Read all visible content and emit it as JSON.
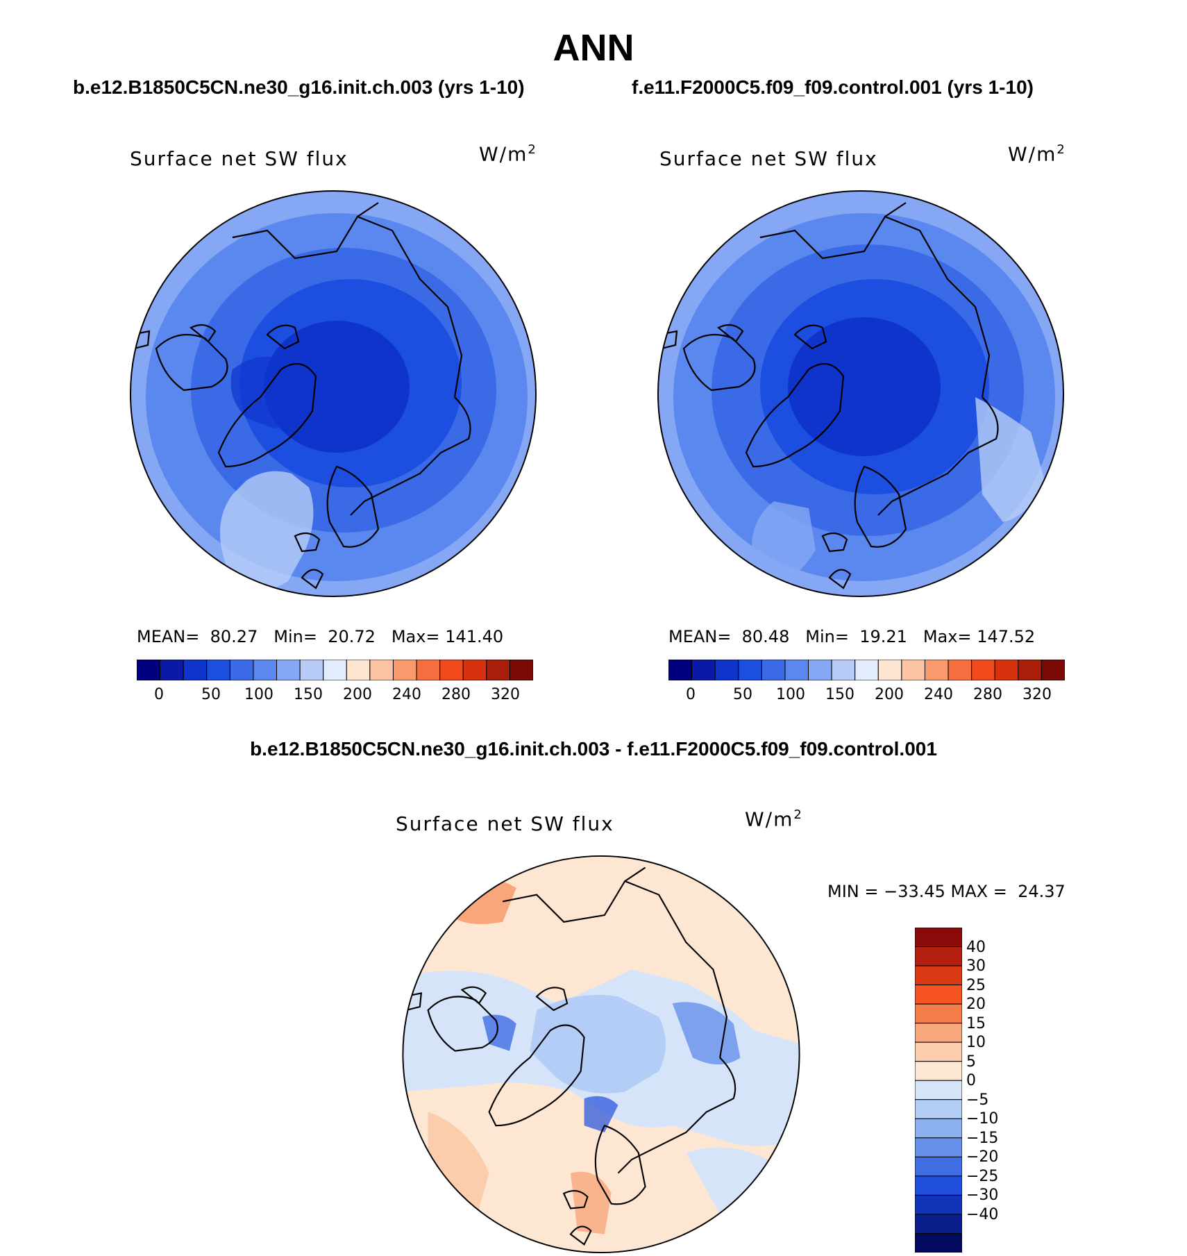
{
  "title": "ANN",
  "panels": [
    {
      "case_title": "b.e12.B1850C5CN.ne30_g16.init.ch.003 (yrs 1-10)",
      "variable": "Surface net SW flux",
      "units": "W/m",
      "units_exp": "2",
      "stats": {
        "mean_label": "MEAN=",
        "mean": "80.27",
        "min_label": "Min=",
        "min": "20.72",
        "max_label": "Max=",
        "max": "141.40"
      }
    },
    {
      "case_title": "f.e11.F2000C5.f09_f09.control.001 (yrs 1-10)",
      "variable": "Surface net SW flux",
      "units": "W/m",
      "units_exp": "2",
      "stats": {
        "mean_label": "MEAN=",
        "mean": "80.48",
        "min_label": "Min=",
        "min": "19.21",
        "max_label": "Max=",
        "max": "147.52"
      }
    }
  ],
  "abs_colorbar": {
    "colors": [
      "#00007f",
      "#0a1aa6",
      "#0f34cc",
      "#1c4ee0",
      "#3a6ae6",
      "#5a88ee",
      "#86a7f4",
      "#b7cdf8",
      "#e3ecfb",
      "#fde5d2",
      "#fcc4a3",
      "#f99b6d",
      "#f66e3f",
      "#f04a1c",
      "#d63210",
      "#a81e0a",
      "#7a0a06"
    ],
    "ticks": [
      "0",
      "50",
      "100",
      "150",
      "200",
      "240",
      "280",
      "320"
    ]
  },
  "diff": {
    "title": "b.e12.B1850C5CN.ne30_g16.init.ch.003 - f.e11.F2000C5.f09_f09.control.001",
    "variable": "Surface net SW flux",
    "units": "W/m",
    "units_exp": "2",
    "minmax": "MIN = −33.45 MAX =  24.37",
    "colorbar": {
      "colors": [
        "#8b0a0a",
        "#b3200f",
        "#dc3a14",
        "#f55322",
        "#f57e4a",
        "#f8a67c",
        "#fbcdad",
        "#fde6d2",
        "#d6e4fa",
        "#b4cdf6",
        "#8db0f1",
        "#6690ea",
        "#3f6ee4",
        "#1f4fdc",
        "#1234b8",
        "#0a1e8c",
        "#020a5e"
      ],
      "labels": [
        "40",
        "30",
        "25",
        "20",
        "15",
        "10",
        "5",
        "0",
        "−5",
        "−10",
        "−15",
        "−20",
        "−25",
        "−30",
        "−40"
      ]
    }
  },
  "chart_data": [
    {
      "type": "heatmap",
      "projection": "north polar stereographic",
      "title": "Surface net SW flux",
      "case": "b.e12.B1850C5CN.ne30_g16.init.ch.003 (yrs 1-10)",
      "units": "W/m2",
      "mean": 80.27,
      "min": 20.72,
      "max": 141.4,
      "levels": [
        0,
        50,
        100,
        150,
        200,
        240,
        280,
        320
      ]
    },
    {
      "type": "heatmap",
      "projection": "north polar stereographic",
      "title": "Surface net SW flux",
      "case": "f.e11.F2000C5.f09_f09.control.001 (yrs 1-10)",
      "units": "W/m2",
      "mean": 80.48,
      "min": 19.21,
      "max": 147.52,
      "levels": [
        0,
        50,
        100,
        150,
        200,
        240,
        280,
        320
      ]
    },
    {
      "type": "heatmap",
      "projection": "north polar stereographic",
      "title": "Surface net SW flux",
      "case": "b.e12.B1850C5CN.ne30_g16.init.ch.003 - f.e11.F2000C5.f09_f09.control.001",
      "units": "W/m2",
      "min": -33.45,
      "max": 24.37,
      "levels": [
        -40,
        -30,
        -25,
        -20,
        -15,
        -10,
        -5,
        0,
        5,
        10,
        15,
        20,
        25,
        30,
        40
      ]
    }
  ]
}
